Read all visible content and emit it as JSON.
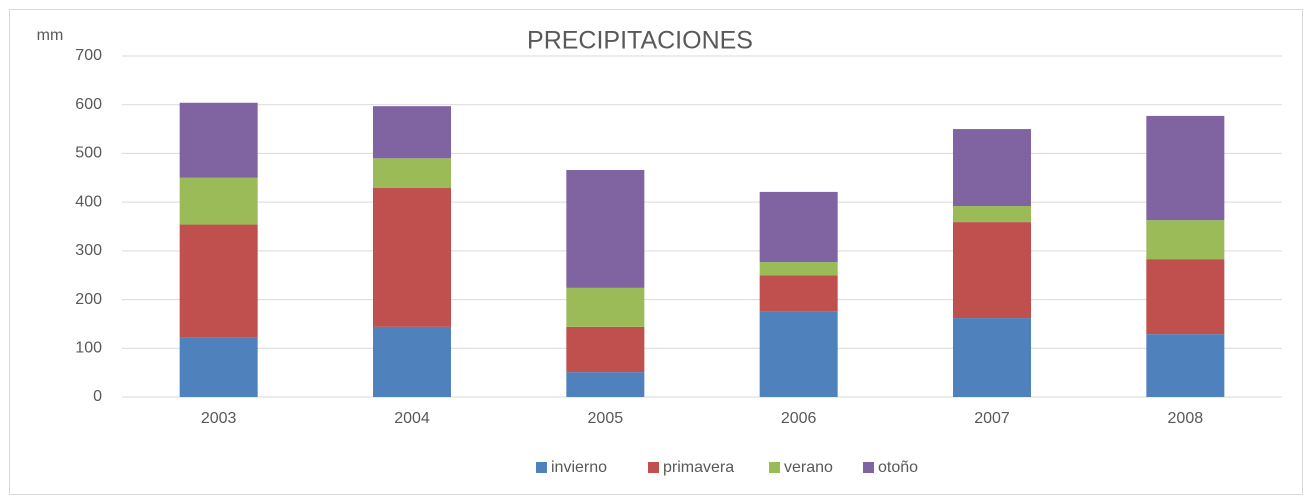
{
  "chart_data": {
    "type": "stacked_bar",
    "title": "PRECIPITACIONES",
    "y_label": "mm",
    "categories": [
      "2003",
      "2004",
      "2005",
      "2006",
      "2007",
      "2008"
    ],
    "series": [
      {
        "name": "invierno",
        "color": "#4f81bd",
        "values": [
          123,
          144,
          51,
          175,
          162,
          129
        ]
      },
      {
        "name": "primavera",
        "color": "#c0504d",
        "values": [
          231,
          285,
          93,
          75,
          197,
          154
        ]
      },
      {
        "name": "verano",
        "color": "#9bbb59",
        "values": [
          96,
          61,
          80,
          27,
          33,
          80
        ]
      },
      {
        "name": "otoño",
        "color": "#8064a2",
        "values": [
          154,
          107,
          242,
          144,
          158,
          214
        ]
      }
    ],
    "ylim": [
      0,
      700
    ],
    "yticks": [
      0,
      100,
      200,
      300,
      400,
      500,
      600,
      700
    ],
    "grid": true,
    "legend": "bottom"
  }
}
